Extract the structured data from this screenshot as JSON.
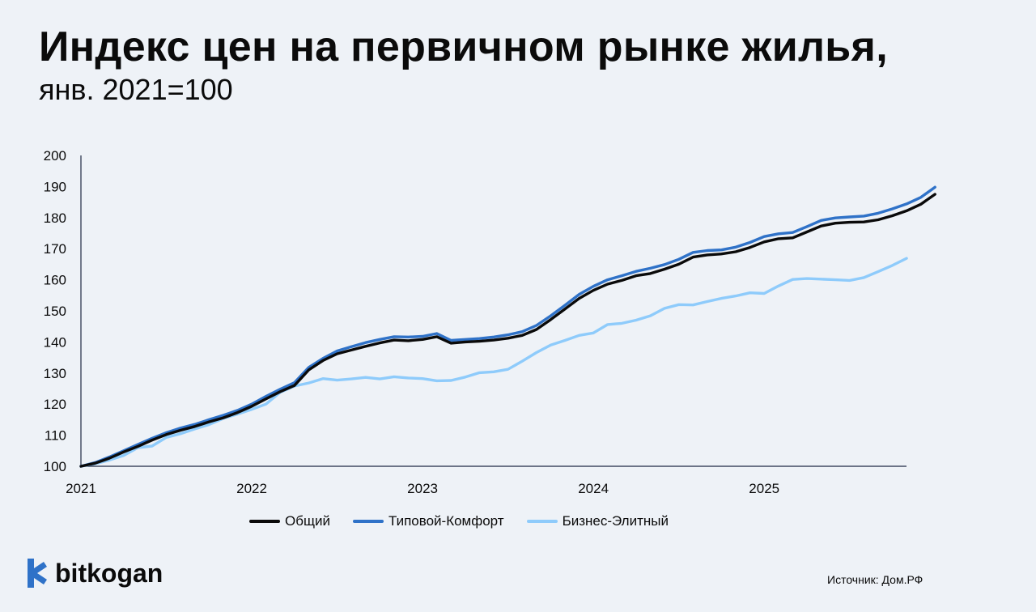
{
  "header": {
    "title": "Индекс цен на первичном рынке жилья,",
    "subtitle": "янв. 2021=100"
  },
  "chart_data": {
    "type": "line",
    "title": "Индекс цен на первичном рынке жилья,",
    "subtitle": "янв. 2021=100",
    "xlabel": "",
    "ylabel": "",
    "xlim": [
      2021.0,
      2025.833
    ],
    "ylim": [
      100,
      200
    ],
    "yticks": [
      100,
      110,
      120,
      130,
      140,
      150,
      160,
      170,
      180,
      190,
      200
    ],
    "xticks": [
      {
        "value": 2021,
        "label": "2021"
      },
      {
        "value": 2022,
        "label": "2022"
      },
      {
        "value": 2023,
        "label": "2023"
      },
      {
        "value": 2024,
        "label": "2024"
      },
      {
        "value": 2025,
        "label": "2025"
      }
    ],
    "grid": false,
    "legend_position": "bottom-center",
    "x_start": 2021.0,
    "x_step_months": 1,
    "series": [
      {
        "name": "Общий",
        "color": "#0a0a0a",
        "values": [
          100.0,
          101.0,
          102.6,
          104.6,
          106.4,
          108.4,
          110.2,
          111.6,
          112.8,
          114.3,
          115.6,
          117.3,
          119.3,
          121.7,
          124.0,
          126.0,
          131.0,
          134.0,
          136.2,
          137.4,
          138.6,
          139.7,
          140.6,
          140.4,
          140.8,
          141.7,
          139.6,
          140.0,
          140.2,
          140.6,
          141.2,
          142.1,
          144.0,
          147.2,
          150.6,
          154.0,
          156.6,
          158.6,
          159.8,
          161.3,
          162.0,
          163.4,
          165.0,
          167.3,
          168.0,
          168.3,
          169.0,
          170.4,
          172.2,
          173.2,
          173.5,
          175.4,
          177.3,
          178.2,
          178.5,
          178.6,
          179.3,
          180.6,
          182.2,
          184.3,
          187.5
        ]
      },
      {
        "name": "Типовой-Комфорт",
        "color": "#2f72c8",
        "values": [
          100.0,
          101.2,
          103.0,
          105.0,
          107.0,
          109.0,
          110.8,
          112.3,
          113.5,
          115.0,
          116.4,
          118.0,
          120.0,
          122.5,
          124.8,
          126.9,
          131.8,
          134.7,
          137.1,
          138.5,
          139.8,
          140.8,
          141.7,
          141.6,
          141.8,
          142.7,
          140.5,
          140.8,
          141.1,
          141.6,
          142.3,
          143.3,
          145.3,
          148.4,
          151.8,
          155.3,
          157.9,
          160.0,
          161.3,
          162.7,
          163.7,
          164.9,
          166.6,
          168.8,
          169.4,
          169.6,
          170.5,
          172.0,
          173.9,
          174.8,
          175.2,
          177.1,
          179.1,
          179.9,
          180.2,
          180.5,
          181.4,
          182.8,
          184.4,
          186.5,
          189.8
        ]
      },
      {
        "name": "Бизнес-Элитный",
        "color": "#8ecbfb",
        "values": [
          100.0,
          100.8,
          102.0,
          103.5,
          106.0,
          106.5,
          109.3,
          110.5,
          112.0,
          113.4,
          115.4,
          116.8,
          118.3,
          120.0,
          123.8,
          125.8,
          126.8,
          128.2,
          127.7,
          128.1,
          128.6,
          128.1,
          128.8,
          128.4,
          128.2,
          127.5,
          127.6,
          128.7,
          130.1,
          130.4,
          131.2,
          133.8,
          136.6,
          139.0,
          140.5,
          142.1,
          142.9,
          145.6,
          146.0,
          147.0,
          148.4,
          150.8,
          152.0,
          151.9,
          153.0,
          154.0,
          154.8,
          155.8,
          155.6,
          158.0,
          160.1,
          160.4,
          160.2,
          160.0,
          159.8,
          160.7,
          162.6,
          164.6,
          166.9
        ]
      }
    ]
  },
  "legend": {
    "items": [
      {
        "label": "Общий",
        "color": "#0a0a0a"
      },
      {
        "label": "Типовой-Комфорт",
        "color": "#2f72c8"
      },
      {
        "label": "Бизнес-Элитный",
        "color": "#8ecbfb"
      }
    ]
  },
  "brand": {
    "name": "bitkogan",
    "color": "#2f72c8"
  },
  "source": {
    "text": "Источник: Дом.РФ"
  }
}
